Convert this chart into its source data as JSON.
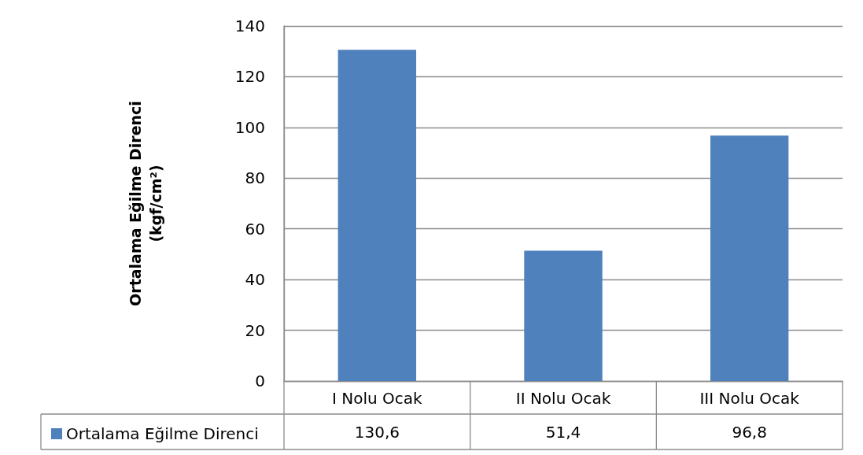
{
  "chart_data": {
    "type": "bar",
    "ylabel": "Ortalama Eğilme Direnci\n(kgf/cm²)",
    "categories": [
      "I Nolu Ocak",
      "II Nolu Ocak",
      "III Nolu Ocak"
    ],
    "series": [
      {
        "name": "Ortalama Eğilme Direnci",
        "color": "#4f81bd",
        "values": [
          130.6,
          51.4,
          96.8
        ],
        "value_labels": [
          "130,6",
          "51,4",
          "96,8"
        ]
      }
    ],
    "ylim": [
      0,
      140
    ],
    "yticks": [
      0,
      20,
      40,
      60,
      80,
      100,
      120,
      140
    ],
    "grid": "y",
    "legend": "bottom left"
  }
}
